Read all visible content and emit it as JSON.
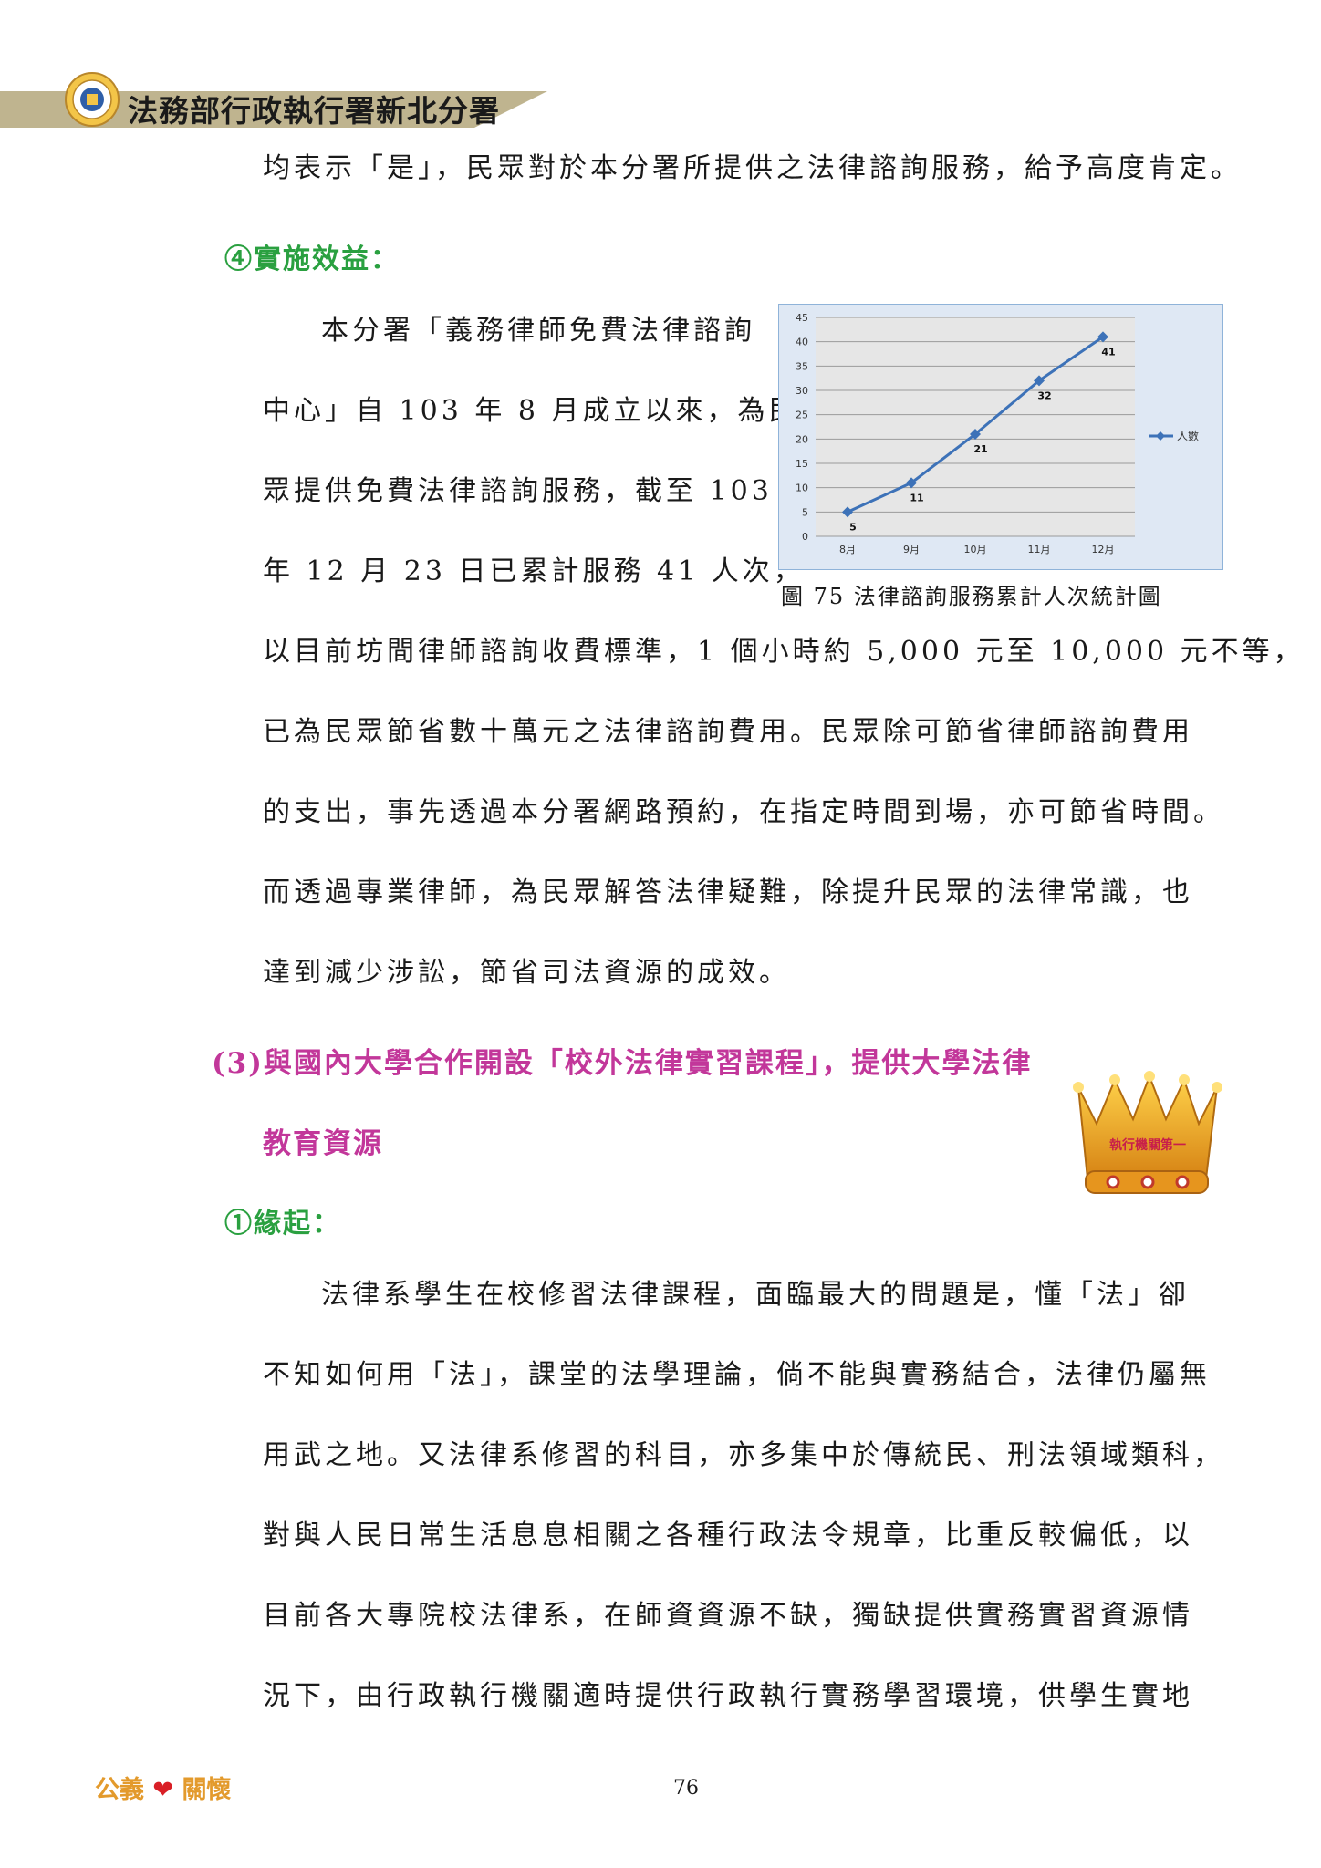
{
  "header": {
    "title": "法務部行政執行署新北分署"
  },
  "paragraphs": {
    "p1": "均表示「是」，民眾對於本分署所提供之法律諮詢服務，給予高度肯定。",
    "h_benefit": "④實施效益：",
    "wrap1": "本分署「義務律師免費法律諮詢",
    "wrap2": "中心」自 103 年 8 月成立以來，為民",
    "wrap3": "眾提供免費法律諮詢服務，截至 103",
    "wrap4": "年 12 月 23 日已累計服務 41 人次，",
    "full1": "以目前坊間律師諮詢收費標準，1 個小時約 5,000 元至 10,000 元不等，",
    "full2": "已為民眾節省數十萬元之法律諮詢費用。民眾除可節省律師諮詢費用",
    "full3": "的支出，事先透過本分署網路預約，在指定時間到場，亦可節省時間。",
    "full4": "而透過專業律師，為民眾解答法律疑難，除提升民眾的法律常識，也",
    "full5": "達到減少涉訟，節省司法資源的成效。",
    "h3_line1": "(3)與國內大學合作開設「校外法律實習課程」，提供大學法律",
    "h3_line2": "教育資源",
    "h_origin": "①緣起：",
    "o1": "法律系學生在校修習法律課程，面臨最大的問題是，懂「法」卻",
    "o2": "不知如何用「法」，課堂的法學理論，倘不能與實務結合，法律仍屬無",
    "o3": "用武之地。又法律系修習的科目，亦多集中於傳統民、刑法領域類科，",
    "o4": "對與人民日常生活息息相關之各種行政法令規章，比重反較偏低，以",
    "o5": "目前各大專院校法律系，在師資資源不缺，獨缺提供實務實習資源情",
    "o6": "況下，由行政執行機關適時提供行政執行實務學習環境，供學生實地"
  },
  "figure": {
    "caption": "圖 75  法律諮詢服務累計人次統計圖"
  },
  "crown": {
    "text": "執行機關第一"
  },
  "footer": {
    "left_a": "公義",
    "left_b": "關懷",
    "page": "76"
  },
  "colors": {
    "green": "#2aa040",
    "pink": "#c2379a",
    "line": "#3d72b8",
    "gold": "#e39a2c"
  },
  "chart_data": {
    "type": "line",
    "categories": [
      "8月",
      "9月",
      "10月",
      "11月",
      "12月"
    ],
    "series": [
      {
        "name": "人數",
        "values": [
          5,
          11,
          21,
          32,
          41
        ]
      }
    ],
    "ylim": [
      0,
      45
    ],
    "yticks": [
      "0",
      "5",
      "10",
      "15",
      "20",
      "25",
      "30",
      "35",
      "40",
      "45"
    ],
    "grid": true,
    "legend": "right"
  }
}
